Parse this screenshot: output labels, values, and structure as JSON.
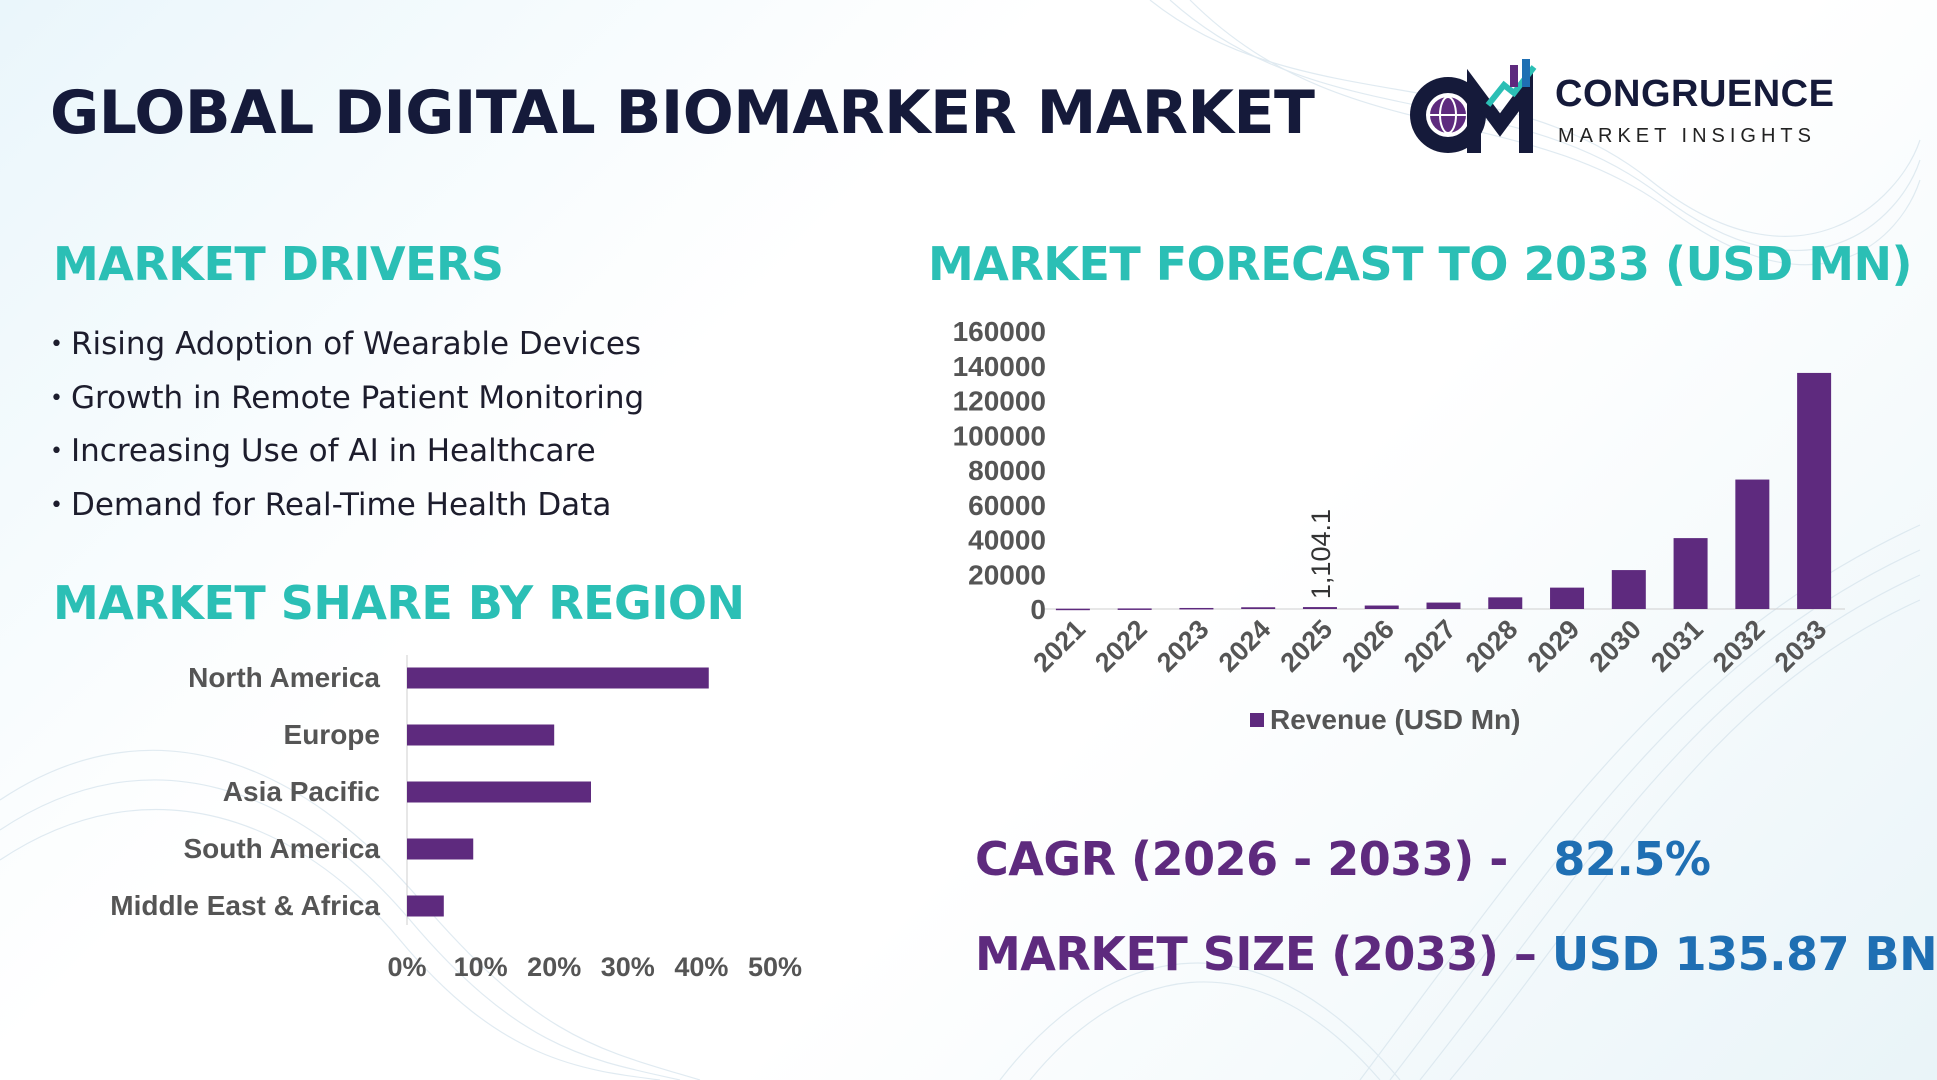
{
  "title": "GLOBAL DIGITAL BIOMARKER MARKET",
  "brand": {
    "name": "CONGRUENCE",
    "tagline": "MARKET INSIGHTS",
    "mark_text": "CM"
  },
  "drivers": {
    "heading": "MARKET DRIVERS",
    "items": [
      "Rising Adoption of Wearable Devices",
      "Growth in Remote Patient Monitoring",
      "Increasing Use of AI in Healthcare",
      "Demand for Real-Time Health Data"
    ]
  },
  "region": {
    "heading": "MARKET SHARE BY REGION"
  },
  "forecast": {
    "heading": "MARKET FORECAST TO 2033 (USD MN)"
  },
  "stats": {
    "cagr_label": "CAGR (2026 - 2033) -",
    "cagr_value": "82.5%",
    "size_label": "MARKET SIZE (2033) –",
    "size_value": "USD 135.87 BN"
  },
  "colors": {
    "bar": "#5e2a7e",
    "heading": "#2bbfb5",
    "title": "#151a3a",
    "stat_value": "#1f6fb3",
    "tick": "#555555"
  },
  "chart_data": [
    {
      "type": "bar",
      "orientation": "horizontal",
      "categories": [
        "North America",
        "Europe",
        "Asia Pacific",
        "South America",
        "Middle East & Africa"
      ],
      "values": [
        41,
        20,
        25,
        9,
        5
      ],
      "unit": "%",
      "xlim": [
        0,
        50
      ],
      "xticks": [
        "0%",
        "10%",
        "20%",
        "30%",
        "40%",
        "50%"
      ],
      "legend": false,
      "grid": false
    },
    {
      "type": "bar",
      "categories": [
        "2021",
        "2022",
        "2023",
        "2024",
        "2025",
        "2026",
        "2027",
        "2028",
        "2029",
        "2030",
        "2031",
        "2032",
        "2033"
      ],
      "series": [
        {
          "name": "Revenue (USD Mn)",
          "values": [
            180,
            330,
            600,
            1000,
            1104.1,
            2000,
            3700,
            6700,
            12300,
            22400,
            40800,
            74500,
            135870
          ]
        }
      ],
      "data_labels": [
        {
          "index": 4,
          "text": "1,104.1"
        }
      ],
      "ylim": [
        0,
        160000
      ],
      "yticks": [
        "0",
        "20000",
        "40000",
        "60000",
        "80000",
        "100000",
        "120000",
        "140000",
        "160000"
      ],
      "legend": "bottom",
      "grid": false
    }
  ]
}
